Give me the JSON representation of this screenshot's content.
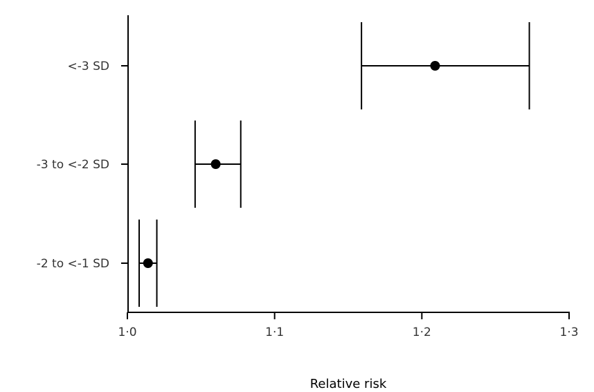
{
  "chart_data": {
    "type": "forest",
    "title": "",
    "xlabel": "Relative risk",
    "ylabel": "",
    "xlim": [
      1.0,
      1.3
    ],
    "xticks": [
      1.0,
      1.1,
      1.2,
      1.3
    ],
    "xtick_labels": [
      "1·0",
      "1·1",
      "1·2",
      "1·3"
    ],
    "grid": false,
    "categories": [
      "<-3 SD",
      "-3 to <-2 SD",
      "-2 to <-1 SD"
    ],
    "estimates": [
      1.209,
      1.06,
      1.014
    ],
    "ci_lower": [
      1.159,
      1.046,
      1.008
    ],
    "ci_upper": [
      1.273,
      1.077,
      1.02
    ]
  }
}
